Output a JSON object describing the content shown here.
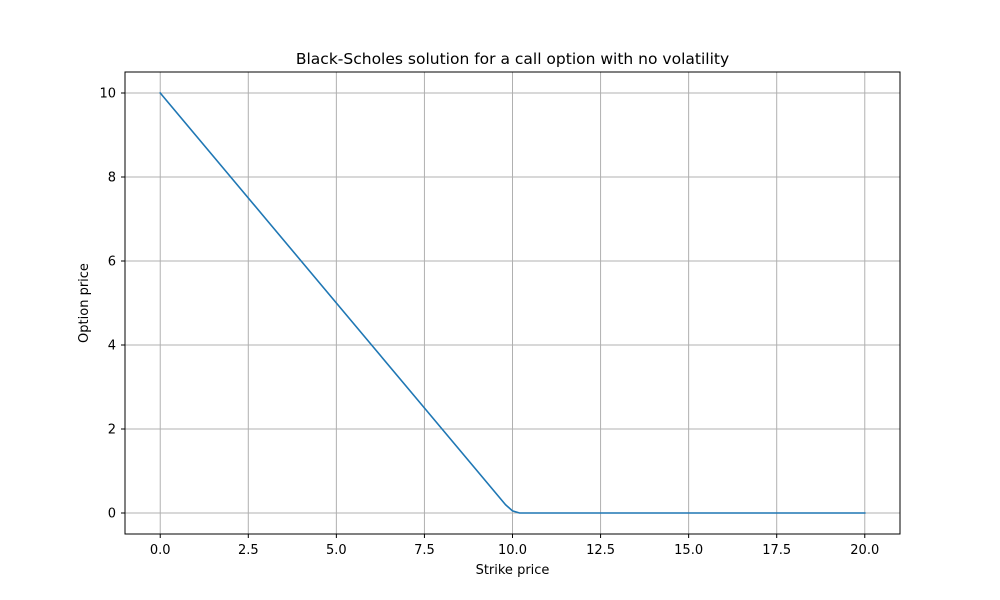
{
  "chart_data": {
    "type": "line",
    "title": "Black-Scholes solution for a call option with no volatility",
    "xlabel": "Strike price",
    "ylabel": "Option price",
    "xlim": [
      -1.0,
      21.0
    ],
    "ylim": [
      -0.5,
      10.5
    ],
    "xticks": [
      0.0,
      2.5,
      5.0,
      7.5,
      10.0,
      12.5,
      15.0,
      17.5,
      20.0
    ],
    "xtick_labels": [
      "0.0",
      "2.5",
      "5.0",
      "7.5",
      "10.0",
      "12.5",
      "15.0",
      "17.5",
      "20.0"
    ],
    "yticks": [
      0,
      2,
      4,
      6,
      8,
      10
    ],
    "ytick_labels": [
      "0",
      "2",
      "4",
      "6",
      "8",
      "10"
    ],
    "grid": true,
    "legend": false,
    "series": [
      {
        "color": "#1f77b4",
        "x": [
          0,
          1,
          2,
          3,
          4,
          5,
          6,
          7,
          8,
          9,
          9.8,
          10.0,
          10.2,
          11,
          12,
          13,
          14,
          15,
          16,
          17,
          18,
          19,
          20
        ],
        "y": [
          10,
          9,
          8,
          7,
          6,
          5,
          4,
          3,
          2,
          1,
          0.2,
          0.05,
          0,
          0,
          0,
          0,
          0,
          0,
          0,
          0,
          0,
          0,
          0
        ]
      }
    ]
  }
}
